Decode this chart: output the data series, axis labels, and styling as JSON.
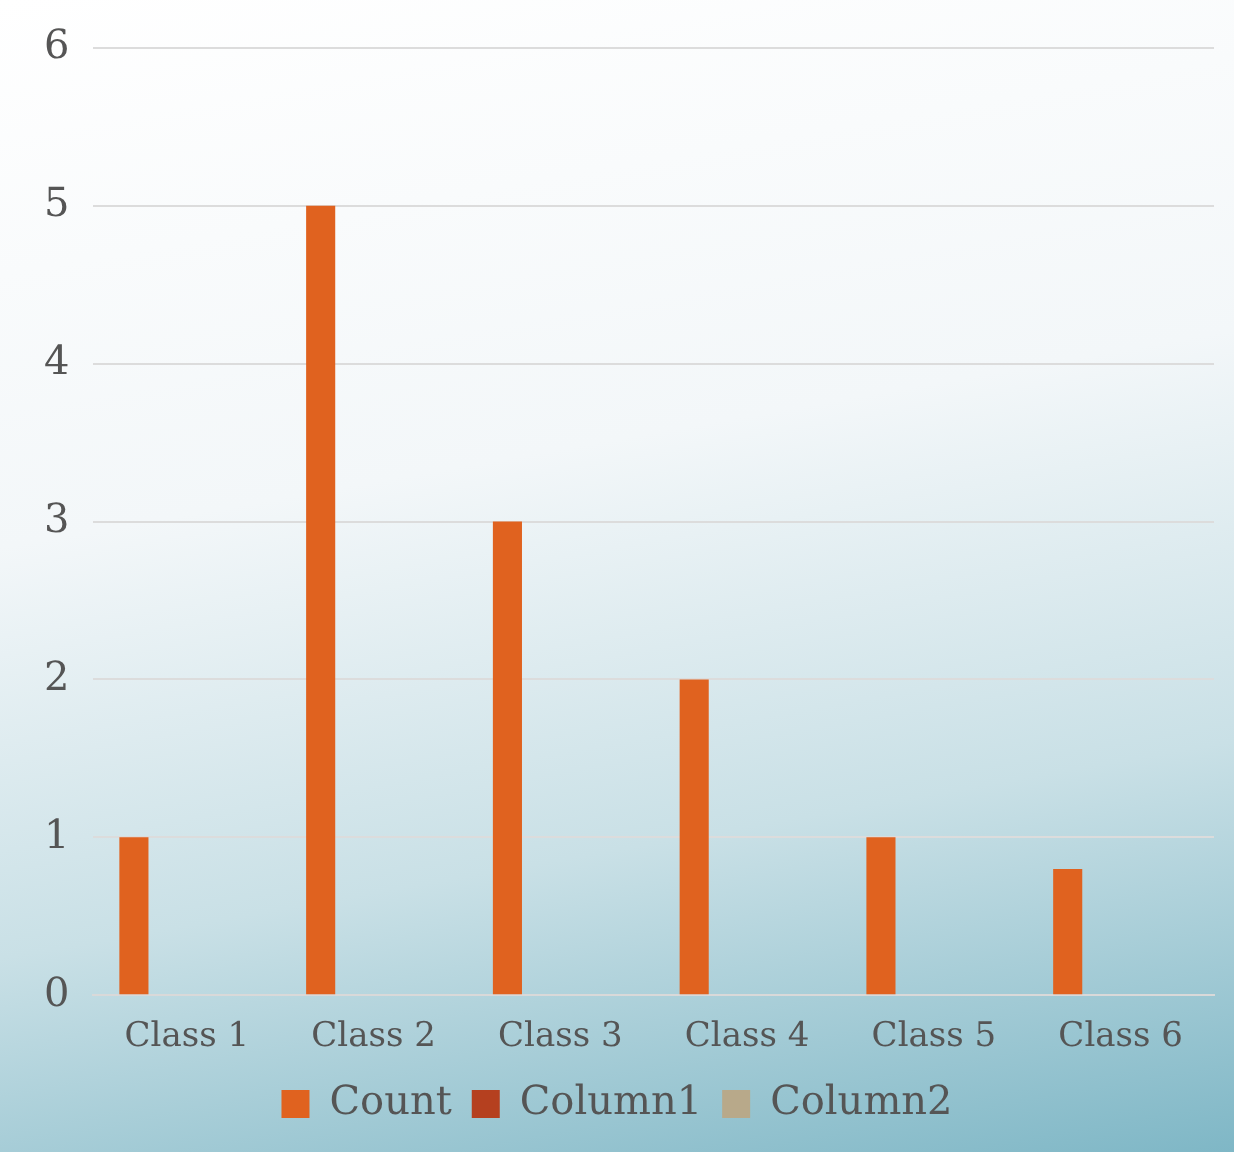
{
  "chart_data": {
    "type": "bar",
    "categories": [
      "Class 1",
      "Class 2",
      "Class 3",
      "Class 4",
      "Class 5",
      "Class 6"
    ],
    "series": [
      {
        "name": "Count",
        "color": "#e0621f",
        "values": [
          1,
          5,
          3,
          2,
          1,
          0.8
        ]
      },
      {
        "name": "Column1",
        "color": "#b5401f",
        "values": [
          null,
          null,
          null,
          null,
          null,
          null
        ]
      },
      {
        "name": "Column2",
        "color": "#b8a98a",
        "values": [
          null,
          null,
          null,
          null,
          null,
          null
        ]
      }
    ],
    "ylim": [
      0,
      6
    ],
    "yticks": [
      0,
      1,
      2,
      3,
      4,
      5,
      6
    ],
    "grid": "y",
    "legend": "bottom"
  }
}
